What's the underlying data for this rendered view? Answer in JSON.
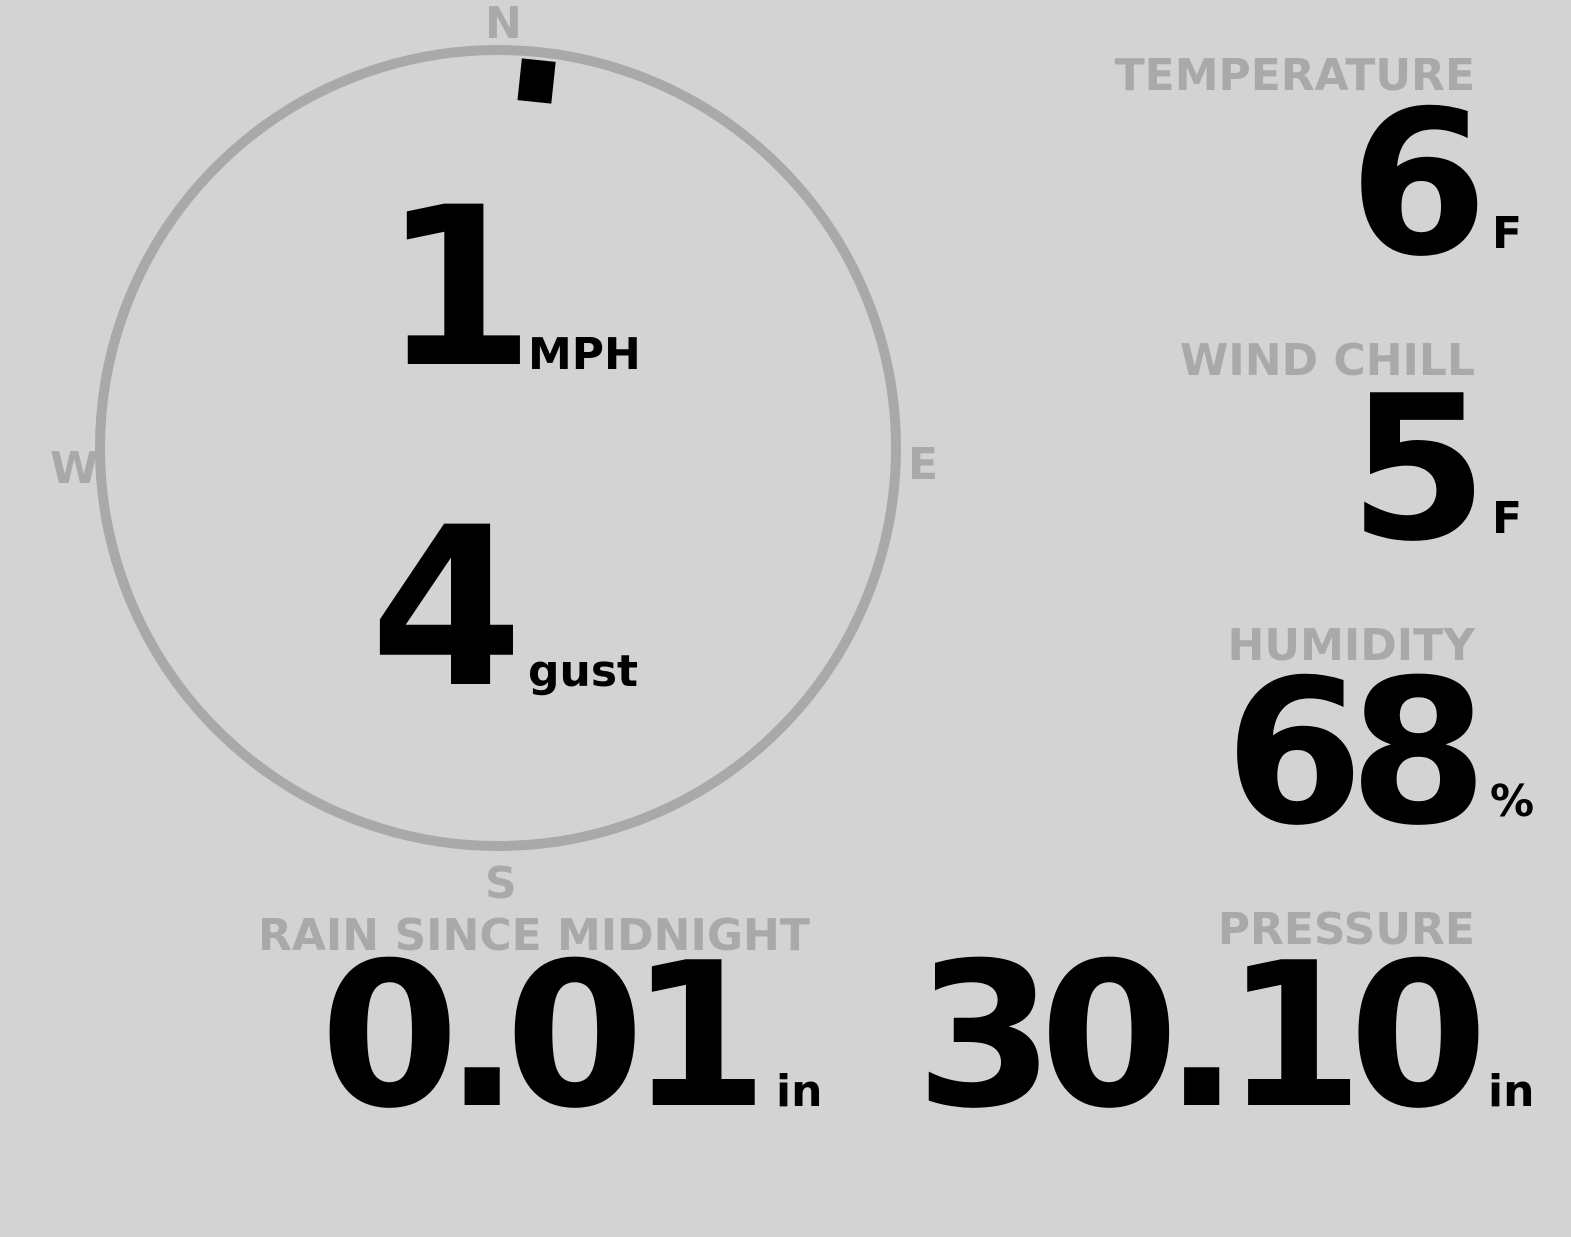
{
  "colors": {
    "background": "#d3d3d3",
    "label": "#a9a9a9",
    "value": "#000000",
    "ring": "#a9a9a9"
  },
  "compass": {
    "north": "N",
    "south": "S",
    "east": "E",
    "west": "W",
    "wind_direction_deg": 6
  },
  "wind": {
    "speed": "1",
    "speed_unit": "MPH",
    "gust": "4",
    "gust_unit": "gust"
  },
  "temperature": {
    "label": "TEMPERATURE",
    "value": "6",
    "unit": "F"
  },
  "wind_chill": {
    "label": "WIND CHILL",
    "value": "5",
    "unit": "F"
  },
  "humidity": {
    "label": "HUMIDITY",
    "value": "68",
    "unit": "%"
  },
  "rain": {
    "label": "RAIN SINCE MIDNIGHT",
    "value": "0.01",
    "unit": "in"
  },
  "pressure": {
    "label": "PRESSURE",
    "value": "30.10",
    "unit": "in"
  }
}
